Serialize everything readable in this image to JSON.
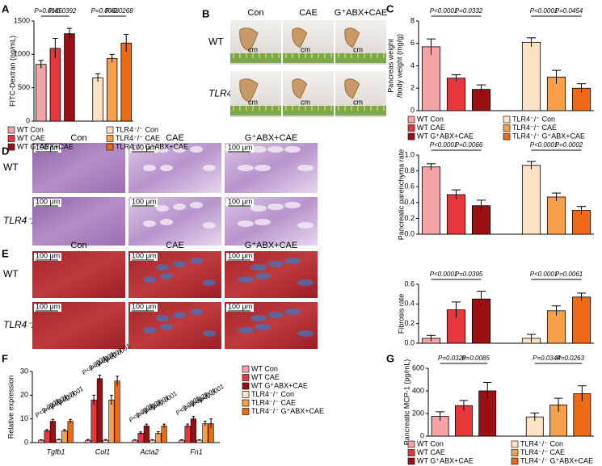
{
  "chart_data": [
    {
      "type": "bar",
      "panel": "A",
      "ylabel": "FITC-Dextran (ng/mL)",
      "ylim": [
        0,
        1500
      ],
      "yticks": [
        0,
        500,
        1000,
        1500
      ],
      "legend": true,
      "series": [
        {
          "name": "WT Con",
          "color": "#f4a3a6",
          "values": [
            850
          ],
          "errors": [
            60
          ]
        },
        {
          "name": "WT CAE",
          "color": "#e8373b",
          "values": [
            1090
          ],
          "errors": [
            150
          ]
        },
        {
          "name": "WT G⁺ABX+CAE",
          "color": "#9c0f14",
          "values": [
            1310
          ],
          "errors": [
            80
          ]
        },
        {
          "name": "TLR4⁻/⁻ Con",
          "color": "#fde3c3",
          "values": [
            650
          ],
          "errors": [
            60
          ]
        },
        {
          "name": "TLR4⁻/⁻ CAE",
          "color": "#f6a04c",
          "values": [
            940
          ],
          "errors": [
            60
          ]
        },
        {
          "name": "TLR4⁻/⁻ G⁺ABX+CAE",
          "color": "#ee6a14",
          "values": [
            1170
          ],
          "errors": [
            130
          ]
        }
      ],
      "annotations": [
        "P=0.0185",
        "P=0.0392",
        "P=0.0058",
        "P=0.0268"
      ]
    },
    {
      "type": "bar",
      "panel": "C",
      "ylabel": [
        "Pancreas weight",
        "/body weight (mg/g)"
      ],
      "ylim": [
        0,
        8
      ],
      "yticks": [
        0,
        2,
        4,
        6,
        8
      ],
      "legend": true,
      "series": [
        {
          "name": "WT Con",
          "color": "#f4a3a6",
          "values": [
            5.7
          ],
          "errors": [
            0.7
          ]
        },
        {
          "name": "WT CAE",
          "color": "#e8373b",
          "values": [
            2.9
          ],
          "errors": [
            0.3
          ]
        },
        {
          "name": "WT G⁺ABX+CAE",
          "color": "#9c0f14",
          "values": [
            1.9
          ],
          "errors": [
            0.4
          ]
        },
        {
          "name": "TLR4⁻/⁻ Con",
          "color": "#fde3c3",
          "values": [
            6.1
          ],
          "errors": [
            0.4
          ]
        },
        {
          "name": "TLR4⁻/⁻ CAE",
          "color": "#f6a04c",
          "values": [
            3.0
          ],
          "errors": [
            0.6
          ]
        },
        {
          "name": "TLR4⁻/⁻ G⁺ABX+CAE",
          "color": "#ee6a14",
          "values": [
            2.0
          ],
          "errors": [
            0.4
          ]
        }
      ],
      "annotations": [
        "P<0.0001",
        "P=0.0332",
        "P<0.0001",
        "P=0.0454"
      ]
    },
    {
      "type": "bar",
      "ylabel": "Pancreatic parenchyma rate",
      "ylim": [
        0,
        1.0
      ],
      "yticks": [
        {
          "value": 0,
          "label": "0.0"
        },
        0.2,
        0.4,
        0.6,
        0.8,
        {
          "value": 1,
          "label": "1.0"
        }
      ],
      "legend": false,
      "series": [
        {
          "name": "WT Con",
          "color": "#f4a3a6",
          "values": [
            0.85
          ],
          "errors": [
            0.04
          ]
        },
        {
          "name": "WT CAE",
          "color": "#e8373b",
          "values": [
            0.5
          ],
          "errors": [
            0.06
          ]
        },
        {
          "name": "WT G⁺ABX+CAE",
          "color": "#9c0f14",
          "values": [
            0.36
          ],
          "errors": [
            0.07
          ]
        },
        {
          "name": "TLR4⁻/⁻ Con",
          "color": "#fde3c3",
          "values": [
            0.87
          ],
          "errors": [
            0.05
          ]
        },
        {
          "name": "TLR4⁻/⁻ CAE",
          "color": "#f6a04c",
          "values": [
            0.47
          ],
          "errors": [
            0.05
          ]
        },
        {
          "name": "TLR4⁻/⁻ G⁺ABX+CAE",
          "color": "#ee6a14",
          "values": [
            0.3
          ],
          "errors": [
            0.05
          ]
        }
      ],
      "annotations": [
        "P<0.0001",
        "P=0.0066",
        "P<0.0001",
        "P=0.0002"
      ]
    },
    {
      "type": "bar",
      "ylabel": "Fibrosis rate",
      "ylim": [
        0,
        0.6
      ],
      "yticks": [
        {
          "value": 0,
          "label": "0.0"
        },
        0.2,
        0.4,
        0.6
      ],
      "legend": false,
      "series": [
        {
          "name": "WT Con",
          "color": "#f4a3a6",
          "values": [
            0.05
          ],
          "errors": [
            0.03
          ]
        },
        {
          "name": "WT CAE",
          "color": "#e8373b",
          "values": [
            0.34
          ],
          "errors": [
            0.08
          ]
        },
        {
          "name": "WT G⁺ABX+CAE",
          "color": "#9c0f14",
          "values": [
            0.45
          ],
          "errors": [
            0.08
          ]
        },
        {
          "name": "TLR4⁻/⁻ Con",
          "color": "#fde3c3",
          "values": [
            0.05
          ],
          "errors": [
            0.04
          ]
        },
        {
          "name": "TLR4⁻/⁻ CAE",
          "color": "#f6a04c",
          "values": [
            0.33
          ],
          "errors": [
            0.05
          ]
        },
        {
          "name": "TLR4⁻/⁻ G⁺ABX+CAE",
          "color": "#ee6a14",
          "values": [
            0.47
          ],
          "errors": [
            0.04
          ]
        }
      ],
      "annotations": [
        "P<0.0001",
        "P=0.0395",
        "P<0.0001",
        "P=0.0061"
      ]
    },
    {
      "type": "grouped_bar",
      "panel": "F",
      "ylabel": "Relative expression",
      "ylim": [
        0,
        30
      ],
      "yticks": [
        0,
        10,
        20,
        30
      ],
      "legend": true,
      "categories": [
        "Tgfb1",
        "Col1",
        "Acta2",
        "Fn1"
      ],
      "series": [
        {
          "name": "WT Con",
          "color": "#f4a3a6",
          "values": [
            1,
            1,
            1,
            1
          ],
          "errors": [
            0.2,
            0.3,
            0.2,
            0.2
          ]
        },
        {
          "name": "WT CAE",
          "color": "#e8373b",
          "values": [
            5,
            18,
            4,
            7
          ],
          "errors": [
            0.5,
            2,
            0.5,
            0.8
          ]
        },
        {
          "name": "WT G⁺ABX+CAE",
          "color": "#9c0f14",
          "values": [
            9,
            27,
            7,
            10
          ],
          "errors": [
            0.8,
            1.5,
            0.8,
            1
          ]
        },
        {
          "name": "TLR4⁻/⁻ Con",
          "color": "#fde3c3",
          "values": [
            1.2,
            1,
            1,
            1
          ],
          "errors": [
            0.2,
            0.3,
            0.2,
            0.2
          ]
        },
        {
          "name": "TLR4⁻/⁻ CAE",
          "color": "#f6a04c",
          "values": [
            5,
            18,
            4,
            8
          ],
          "errors": [
            0.5,
            2,
            0.6,
            1
          ]
        },
        {
          "name": "TLR4⁻/⁻ G⁺ABX+CAE",
          "color": "#ee6a14",
          "values": [
            9,
            26,
            7,
            8
          ],
          "errors": [
            0.8,
            2,
            0.8,
            2
          ]
        }
      ],
      "annotations": [
        [
          "P<0.0001",
          "P<0.0001",
          "P<0.0001",
          "P<0.0001"
        ],
        [
          "P<0.0001",
          "P<0.0001",
          "P<0.0001",
          "P<0.0001"
        ],
        [
          "P<0.0001",
          "P<0.0001",
          "P<0.0001",
          "P<0.0001"
        ],
        [
          "P<0.0001",
          "P=0.0221",
          "P<0.0001",
          "P<0.0001"
        ]
      ]
    },
    {
      "type": "bar",
      "panel": "G",
      "ylabel": "Pancreatic MCP-1 (pg/mL)",
      "ylim": [
        0,
        600
      ],
      "yticks": [
        0,
        200,
        400,
        600
      ],
      "legend": true,
      "series": [
        {
          "name": "WT Con",
          "color": "#f4a3a6",
          "values": [
            175
          ],
          "errors": [
            40
          ]
        },
        {
          "name": "WT CAE",
          "color": "#e8373b",
          "values": [
            270
          ],
          "errors": [
            45
          ]
        },
        {
          "name": "WT G⁺ABX+CAE",
          "color": "#9c0f14",
          "values": [
            400
          ],
          "errors": [
            75
          ]
        },
        {
          "name": "TLR4⁻/⁻ Con",
          "color": "#fde3c3",
          "values": [
            170
          ],
          "errors": [
            35
          ]
        },
        {
          "name": "TLR4⁻/⁻ CAE",
          "color": "#f6a04c",
          "values": [
            275
          ],
          "errors": [
            60
          ]
        },
        {
          "name": "TLR4⁻/⁻ G⁺ABX+CAE",
          "color": "#ee6a14",
          "values": [
            375
          ],
          "errors": [
            70
          ]
        }
      ],
      "annotations": [
        "P=0.0328",
        "P=0.0085",
        "P=0.0344",
        "P=0.0263"
      ]
    }
  ],
  "image_panels": [
    {
      "panel": "B",
      "columns": [
        "Con",
        "CAE",
        "G⁺ABX+CAE"
      ],
      "rows": [
        "WT",
        "TLR4⁻/⁻"
      ],
      "ruler_label": "cm"
    },
    {
      "panel": "D",
      "columns": [
        "Con",
        "CAE",
        "G⁺ABX+CAE"
      ],
      "rows": [
        "WT",
        "TLR4⁻/⁻"
      ],
      "scale_bar": "100 μm"
    },
    {
      "panel": "E",
      "columns": [
        "Con",
        "CAE",
        "G⁺ABX+CAE"
      ],
      "rows": [
        "WT",
        "TLR4⁻/⁻"
      ],
      "scale_bar": "100 μm"
    }
  ]
}
